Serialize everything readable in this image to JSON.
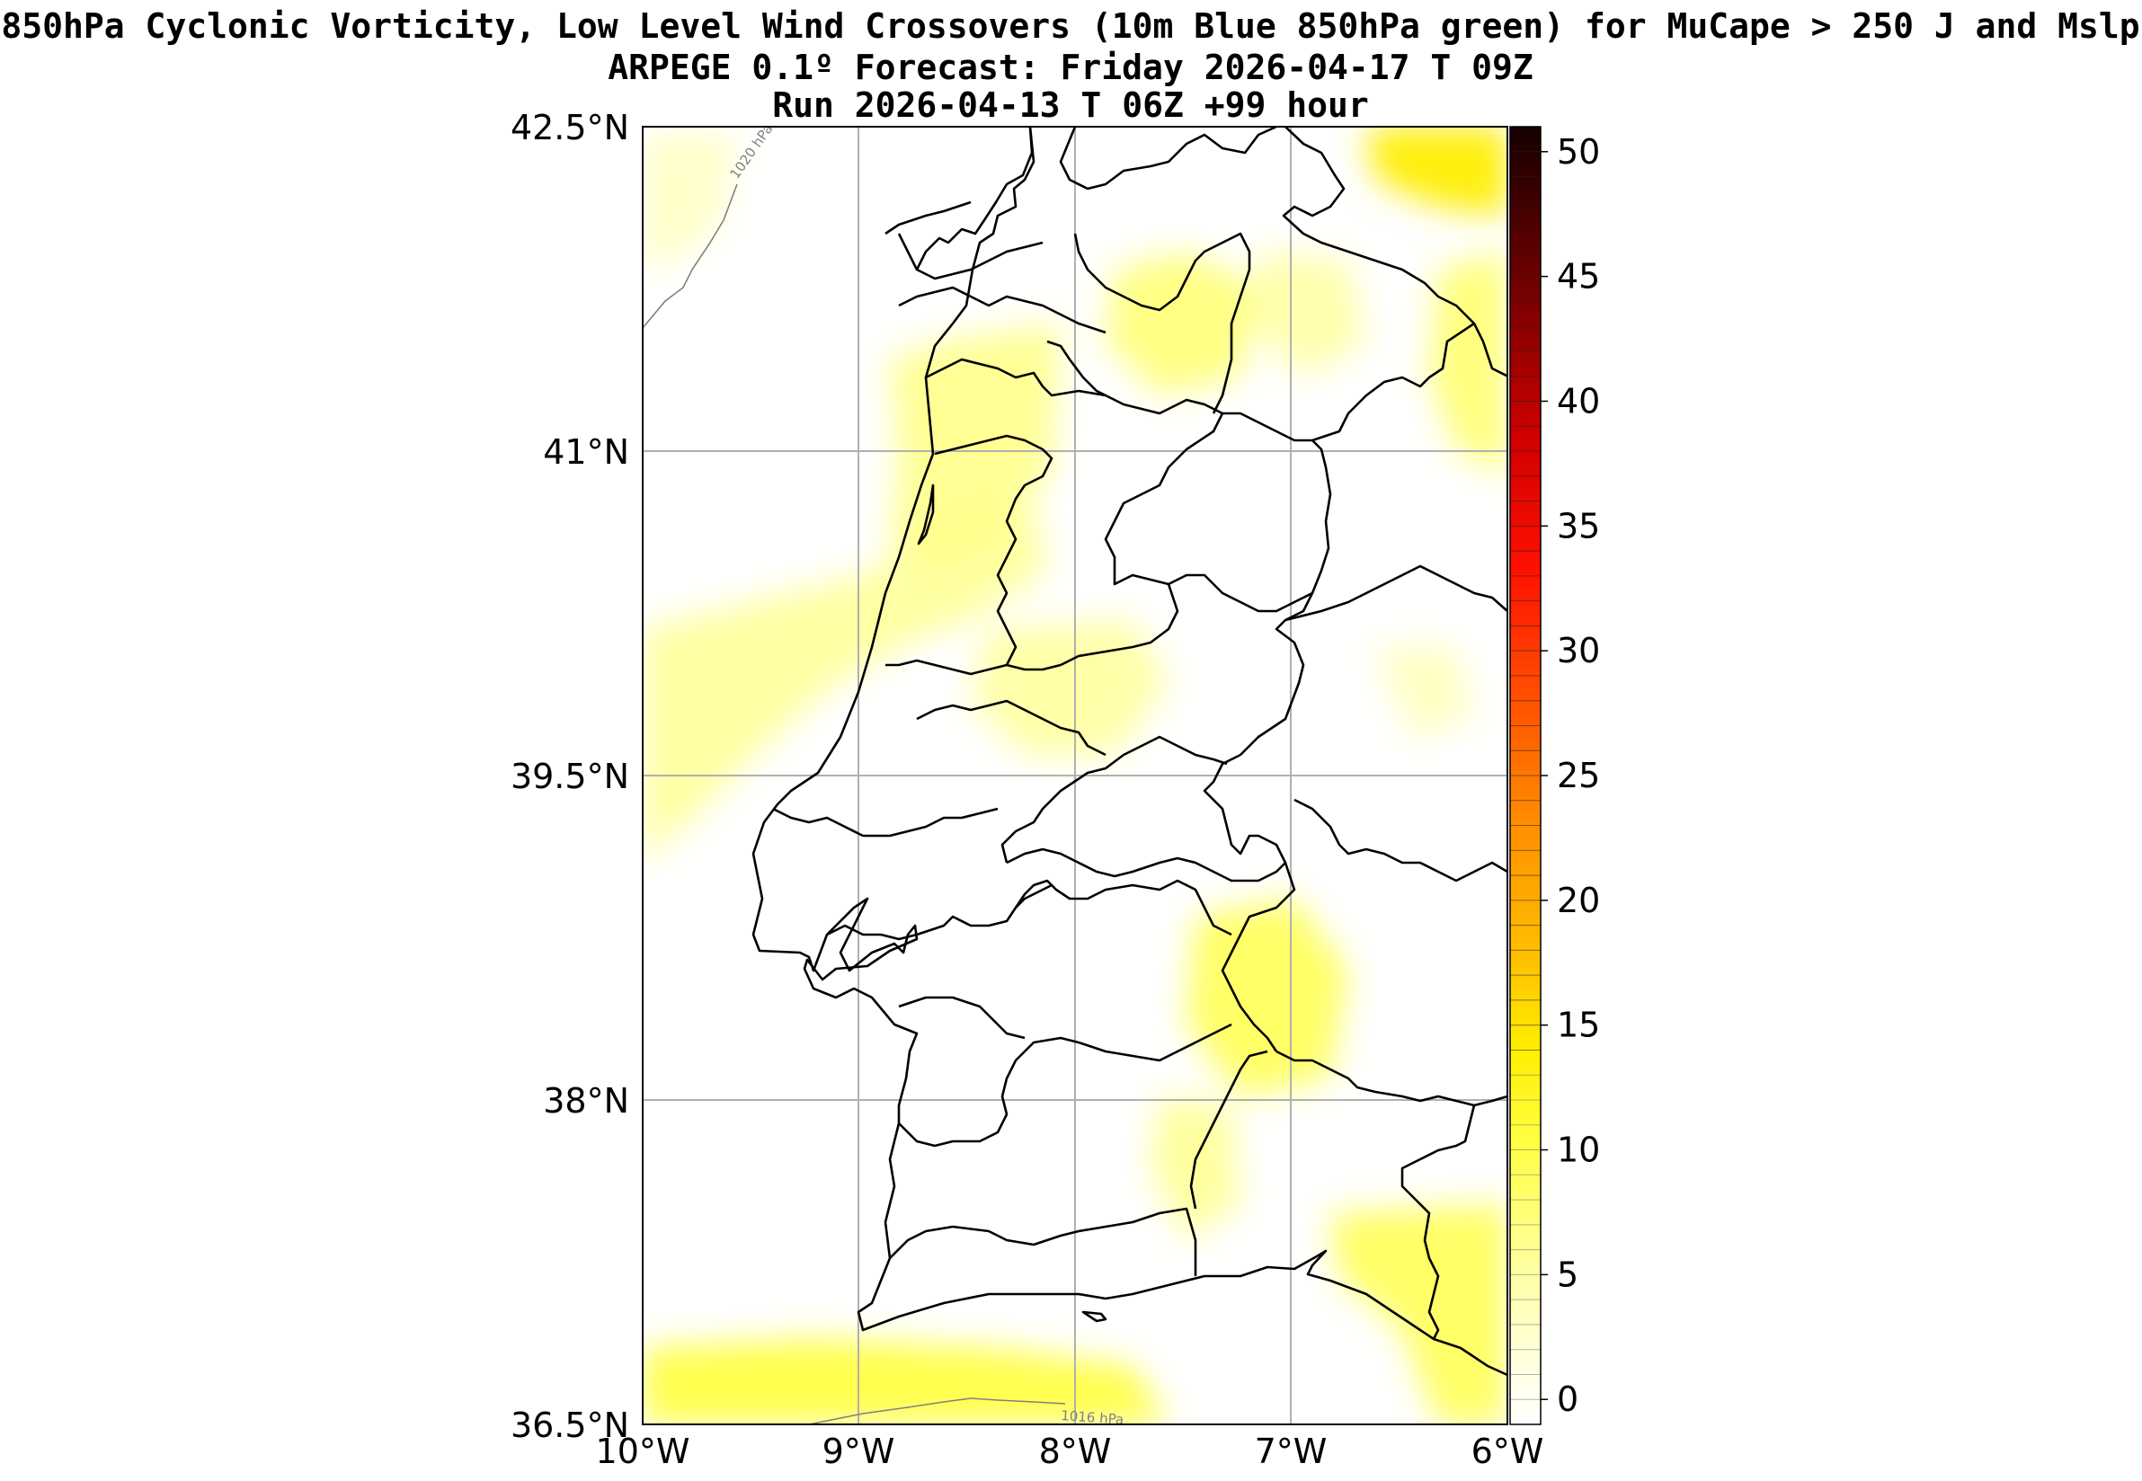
{
  "titles": {
    "line1": "850hPa Cyclonic Vorticity, Low Level Wind Crossovers (10m Blue 850hPa green) for MuCape > 250 J and Mslp",
    "line2": "ARPEGE 0.1º Forecast: Friday 2026-04-17 T 09Z",
    "line3": "Run 2026-04-13 T 06Z +99 hour"
  },
  "axes": {
    "lat_ticks": [
      "42.5°N",
      "41°N",
      "39.5°N",
      "38°N",
      "36.5°N"
    ],
    "lon_ticks": [
      "10°W",
      "9°W",
      "8°W",
      "7°W",
      "6°W"
    ],
    "lat_range": [
      36.5,
      42.5
    ],
    "lon_range": [
      -10,
      -6
    ]
  },
  "colorbar": {
    "ticks": [
      "0",
      "5",
      "10",
      "15",
      "20",
      "25",
      "30",
      "35",
      "40",
      "45",
      "50"
    ],
    "min": -1,
    "max": 51,
    "colors": [
      "#ffffff",
      "#ffffe0",
      "#ffff80",
      "#ffff00",
      "#ffd000",
      "#ffa000",
      "#ff7000",
      "#ff3000",
      "#e00000",
      "#a00000",
      "#500000",
      "#1a0000"
    ]
  },
  "isobars": [
    {
      "label": "1020 hPa"
    },
    {
      "label": "1016 hPa"
    }
  ],
  "colors": {
    "gridline": "#b0b0b0",
    "border": "#000000",
    "isobar": "#808080"
  }
}
